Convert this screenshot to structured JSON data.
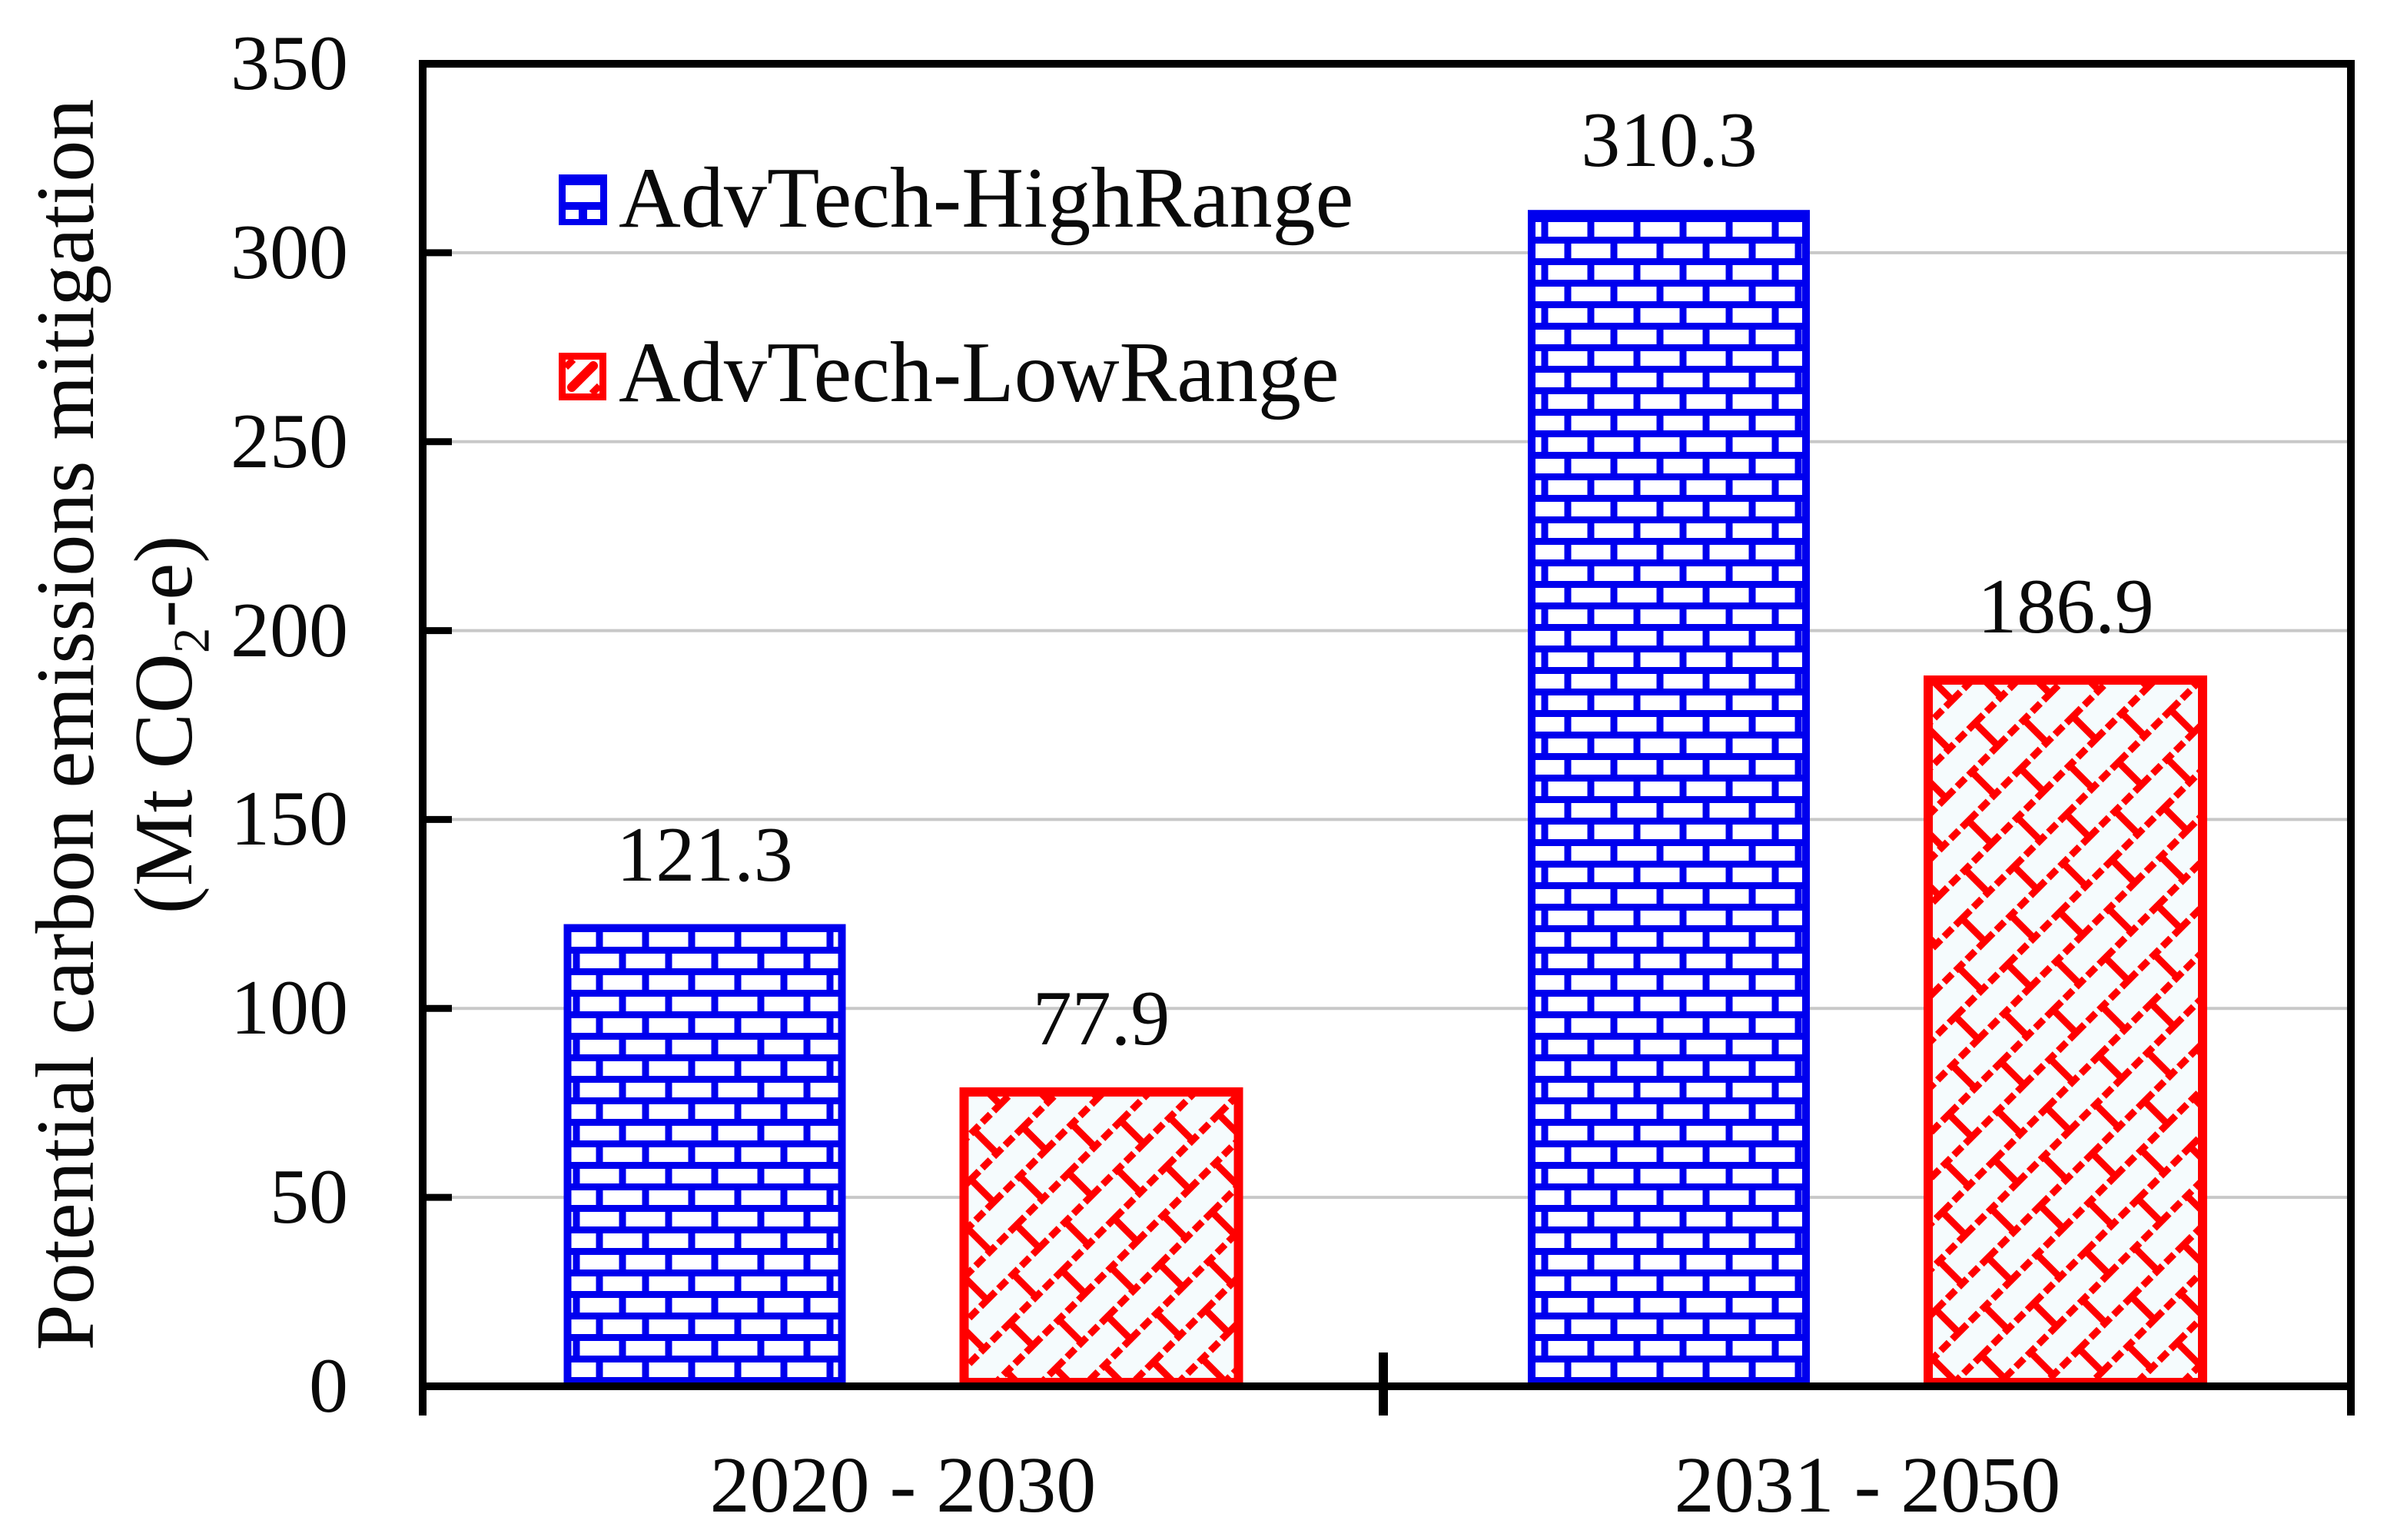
{
  "figure": {
    "background": "#ffffff"
  },
  "chart_data": {
    "type": "bar",
    "title": "",
    "categories": [
      "2020 - 2030",
      "2031 - 2050"
    ],
    "series": [
      {
        "name": "AdvTech-HighRange",
        "color": "#0000ee",
        "pattern": "brick-horizontal",
        "values": [
          121.3,
          310.3
        ],
        "data_labels": [
          "121.3",
          "310.3"
        ]
      },
      {
        "name": "AdvTech-LowRange",
        "color": "#ff0000",
        "pattern": "brick-diagonal",
        "values": [
          77.9,
          186.9
        ],
        "data_labels": [
          "77.9",
          "186.9"
        ]
      }
    ],
    "ylabel_line1": "Potential carbon emissions mitigation",
    "ylabel_unit": {
      "prefix": "(Mt CO",
      "sub": "2",
      "suffix": "-e)"
    },
    "xlabel": "",
    "ylim": [
      0,
      350
    ],
    "yticks": [
      0,
      50,
      100,
      150,
      200,
      250,
      300,
      350
    ],
    "ygrid_values": [
      50,
      100,
      150,
      200,
      250,
      300
    ],
    "grid": "horizontal-light-gray",
    "legend_position": "upper-left-inside",
    "data_label_decimals": 1
  },
  "colors": {
    "series_high": "#0000ee",
    "series_low": "#ff0000",
    "gridline": "#c8c8c8",
    "frame": "#000000",
    "text": "#0a0a0a",
    "low_fill_tint": "#f5fbfd",
    "high_fill": "#ffffff"
  }
}
